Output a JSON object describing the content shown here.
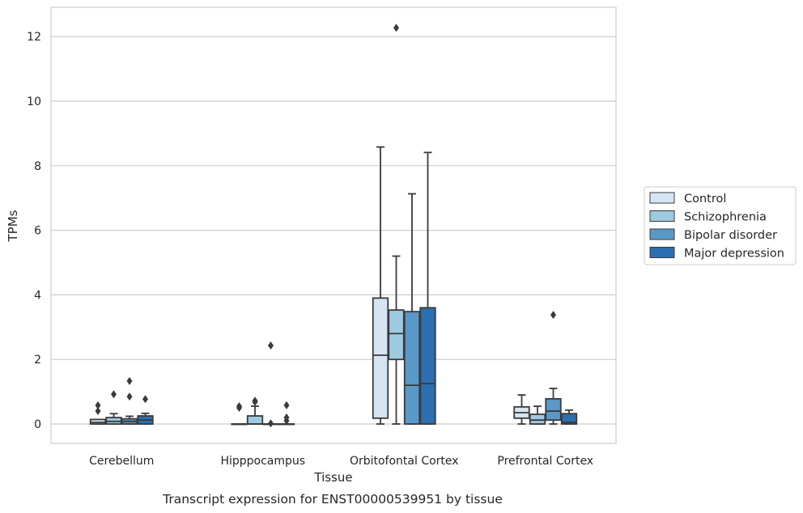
{
  "chart_data": {
    "type": "box",
    "xlabel": "Tissue",
    "ylabel": "TPMs",
    "caption": "Transcript expression for ENST00000539951 by tissue",
    "ylim": [
      -0.6,
      12.9
    ],
    "yticks": [
      "0",
      "2",
      "4",
      "6",
      "8",
      "10",
      "12"
    ],
    "grid": "horizontal",
    "legend_position": "right",
    "categories": [
      "Cerebellum",
      "Hipppocampus",
      "Orbitofontal Cortex",
      "Prefrontal Cortex"
    ],
    "series": [
      {
        "name": "Control",
        "color": "#d6e5f3",
        "boxes": [
          {
            "q1": 0.0,
            "median": 0.05,
            "q3": 0.14,
            "whisker_low": 0.0,
            "whisker_high": 0.14,
            "outliers": [
              0.4,
              0.58
            ]
          },
          {
            "q1": 0.0,
            "median": 0.0,
            "q3": 0.0,
            "whisker_low": 0.0,
            "whisker_high": 0.0,
            "outliers": [
              0.5,
              0.55
            ]
          },
          {
            "q1": 0.18,
            "median": 2.13,
            "q3": 3.9,
            "whisker_low": 0.0,
            "whisker_high": 8.58,
            "outliers": []
          },
          {
            "q1": 0.18,
            "median": 0.35,
            "q3": 0.53,
            "whisker_low": 0.0,
            "whisker_high": 0.9,
            "outliers": []
          }
        ]
      },
      {
        "name": "Schizophrenia",
        "color": "#9ecae1",
        "boxes": [
          {
            "q1": 0.0,
            "median": 0.08,
            "q3": 0.2,
            "whisker_low": 0.0,
            "whisker_high": 0.32,
            "outliers": [
              0.92
            ]
          },
          {
            "q1": 0.0,
            "median": 0.0,
            "q3": 0.25,
            "whisker_low": 0.0,
            "whisker_high": 0.55,
            "outliers": [
              0.68,
              0.72
            ]
          },
          {
            "q1": 2.0,
            "median": 2.8,
            "q3": 3.53,
            "whisker_low": 0.0,
            "whisker_high": 5.2,
            "outliers": [
              12.27
            ]
          },
          {
            "q1": 0.0,
            "median": 0.12,
            "q3": 0.3,
            "whisker_low": 0.0,
            "whisker_high": 0.55,
            "outliers": []
          }
        ]
      },
      {
        "name": "Bipolar disorder",
        "color": "#5a98c8",
        "boxes": [
          {
            "q1": 0.0,
            "median": 0.08,
            "q3": 0.16,
            "whisker_low": 0.0,
            "whisker_high": 0.24,
            "outliers": [
              0.85,
              1.33
            ]
          },
          {
            "q1": 0.0,
            "median": 0.0,
            "q3": 0.0,
            "whisker_low": 0.0,
            "whisker_high": 0.0,
            "outliers": [
              2.43,
              0.02
            ]
          },
          {
            "q1": 0.0,
            "median": 1.2,
            "q3": 3.48,
            "whisker_low": 0.0,
            "whisker_high": 7.13,
            "outliers": []
          },
          {
            "q1": 0.12,
            "median": 0.4,
            "q3": 0.78,
            "whisker_low": 0.0,
            "whisker_high": 1.1,
            "outliers": [
              3.38
            ]
          }
        ]
      },
      {
        "name": "Major depression",
        "color": "#2c6fb0",
        "boxes": [
          {
            "q1": 0.0,
            "median": 0.12,
            "q3": 0.25,
            "whisker_low": 0.0,
            "whisker_high": 0.33,
            "outliers": [
              0.77
            ]
          },
          {
            "q1": 0.0,
            "median": 0.0,
            "q3": 0.0,
            "whisker_low": 0.0,
            "whisker_high": 0.0,
            "outliers": [
              0.1,
              0.2,
              0.58
            ]
          },
          {
            "q1": 0.0,
            "median": 1.25,
            "q3": 3.6,
            "whisker_low": 0.0,
            "whisker_high": 8.41,
            "outliers": []
          },
          {
            "q1": 0.0,
            "median": 0.05,
            "q3": 0.32,
            "whisker_low": 0.0,
            "whisker_high": 0.43,
            "outliers": []
          }
        ]
      }
    ]
  }
}
